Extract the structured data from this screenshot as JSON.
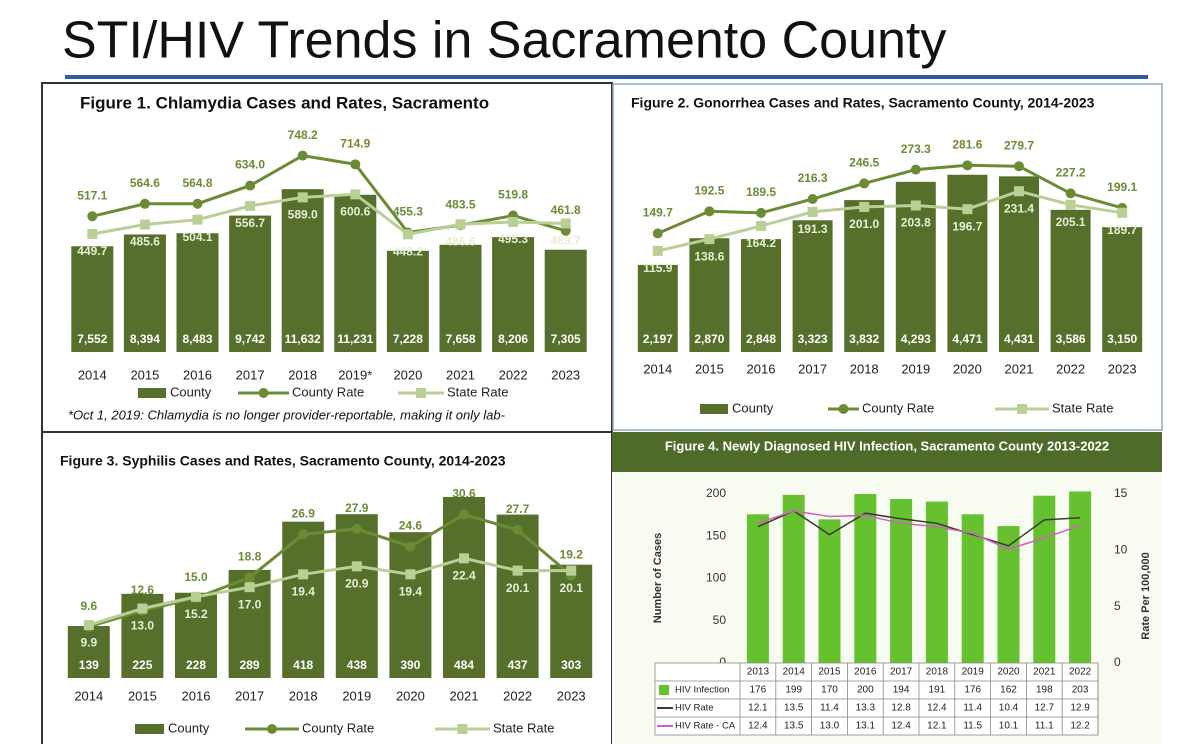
{
  "page_title": "STI/HIV Trends in Sacramento County",
  "chart_data": [
    {
      "type": "bar_line",
      "title": "Figure 1. Chlamydia Cases and Rates, Sacramento",
      "categories": [
        "2014",
        "2015",
        "2016",
        "2017",
        "2018",
        "2019*",
        "2020",
        "2021",
        "2022",
        "2023"
      ],
      "series": [
        {
          "name": "County",
          "type": "bar",
          "color": "#566f2c",
          "values": [
            7552,
            8394,
            8483,
            9742,
            11632,
            11231,
            7228,
            7658,
            8206,
            7305
          ],
          "value_labels": [
            "7,552",
            "8,394",
            "8,483",
            "9,742",
            "11,632",
            "11,231",
            "7,228",
            "7,658",
            "8,206",
            "7,305"
          ]
        },
        {
          "name": "County Rate",
          "type": "line",
          "axis": "y2",
          "marker": "circle",
          "color": "#6b8b35",
          "values": [
            517.1,
            564.6,
            564.8,
            634.0,
            748.2,
            714.9,
            455.3,
            483.5,
            519.8,
            461.8
          ],
          "value_labels": [
            "517.1",
            "564.6",
            "564.8",
            "634.0",
            "748.2",
            "714.9",
            "455.3",
            "483.5",
            "519.8",
            "461.8"
          ]
        },
        {
          "name": "State Rate",
          "type": "line",
          "axis": "y2",
          "marker": "square",
          "color": "#b9cf95",
          "values": [
            449.7,
            485.6,
            504.1,
            556.7,
            589.0,
            600.6,
            448.2,
            486.6,
            495.3,
            489.7
          ],
          "value_labels": [
            "449.7",
            "485.6",
            "504.1",
            "556.7",
            "589.0",
            "600.6",
            "448.2",
            "486.6",
            "495.3",
            "489.7"
          ]
        }
      ],
      "ylim": [
        0,
        15000
      ],
      "y2lim": [
        0,
        800
      ],
      "data_labels": true,
      "note": "*Oct 1, 2019: Chlamydia is no longer provider-reportable, making it only lab-"
    },
    {
      "type": "bar_line",
      "title": "Figure 2. Gonorrhea Cases and Rates, Sacramento County, 2014-2023",
      "categories": [
        "2014",
        "2015",
        "2016",
        "2017",
        "2018",
        "2019",
        "2020",
        "2021",
        "2022",
        "2023"
      ],
      "series": [
        {
          "name": "County",
          "type": "bar",
          "color": "#56702c",
          "values": [
            2197,
            2870,
            2848,
            3323,
            3832,
            4293,
            4471,
            4431,
            3586,
            3150
          ],
          "value_labels": [
            "2,197",
            "2,870",
            "2,848",
            "3,323",
            "3,832",
            "4,293",
            "4,471",
            "4,431",
            "3,586",
            "3,150"
          ]
        },
        {
          "name": "County Rate",
          "type": "line",
          "axis": "y2",
          "marker": "circle",
          "color": "#6b8b35",
          "values": [
            149.7,
            192.5,
            189.5,
            216.3,
            246.5,
            273.3,
            281.6,
            279.7,
            227.2,
            199.1
          ]
        },
        {
          "name": "State Rate",
          "type": "line",
          "axis": "y2",
          "marker": "square",
          "color": "#b9cf95",
          "values": [
            115.9,
            138.6,
            164.2,
            191.3,
            201.0,
            203.8,
            196.7,
            231.4,
            205.1,
            189.7
          ],
          "value_labels": [
            "115.9",
            "138.6",
            "164.2",
            "191.3",
            "201.0",
            "203.8",
            "196.7",
            "231.4",
            "205.1",
            "189.7"
          ]
        }
      ],
      "ylim": [
        0,
        5600
      ],
      "y2lim": [
        -80,
        350
      ],
      "data_labels": true
    },
    {
      "type": "bar_line",
      "title": "Figure 3. Syphilis Cases and Rates, Sacramento County, 2014-2023",
      "categories": [
        "2014",
        "2015",
        "2016",
        "2017",
        "2018",
        "2019",
        "2020",
        "2021",
        "2022",
        "2023"
      ],
      "series": [
        {
          "name": "County",
          "type": "bar",
          "color": "#56702c",
          "values": [
            139,
            225,
            228,
            289,
            418,
            438,
            390,
            484,
            437,
            303
          ]
        },
        {
          "name": "County Rate",
          "type": "line",
          "axis": "y2",
          "marker": "circle",
          "color": "#6b8b35",
          "values": [
            9.6,
            12.6,
            15.0,
            18.8,
            26.9,
            27.9,
            24.6,
            30.6,
            27.7,
            19.2
          ],
          "value_labels": [
            "9.6",
            "12.6",
            "15.0",
            "18.8",
            "26.9",
            "27.9",
            "24.6",
            "30.6",
            "27.7",
            "19.2"
          ]
        },
        {
          "name": "State Rate",
          "type": "line",
          "axis": "y2",
          "marker": "square",
          "color": "#b9cf95",
          "values": [
            9.9,
            13.0,
            15.2,
            17.0,
            19.4,
            20.9,
            19.4,
            22.4,
            20.1,
            20.1
          ],
          "value_labels": [
            "9.9",
            "13.0",
            "15.2",
            "17.0",
            "19.4",
            "20.9",
            "19.4",
            "22.4",
            "20.1",
            "20.1"
          ]
        }
      ],
      "ylim": [
        0,
        500
      ],
      "y2lim": [
        0,
        35
      ],
      "data_labels": true
    },
    {
      "type": "bar_line",
      "title": "Figure 4. Newly Diagnosed HIV Infection, Sacramento County 2013-2022",
      "categories": [
        "2013",
        "2014",
        "2015",
        "2016",
        "2017",
        "2018",
        "2019",
        "2020",
        "2021",
        "2022"
      ],
      "series": [
        {
          "name": "HIV Infection",
          "type": "bar",
          "color": "#66c12f",
          "values": [
            176,
            199,
            170,
            200,
            194,
            191,
            176,
            162,
            198,
            203
          ]
        },
        {
          "name": "HIV Rate",
          "type": "line",
          "axis": "y2",
          "color": "#3b3b2b",
          "values": [
            12.1,
            13.5,
            11.4,
            13.3,
            12.8,
            12.4,
            11.4,
            10.4,
            12.7,
            12.9
          ]
        },
        {
          "name": "HIV Rate - CA",
          "type": "line",
          "axis": "y2",
          "color": "#d060c8",
          "values": [
            12.4,
            13.5,
            13.0,
            13.1,
            12.4,
            12.1,
            11.5,
            10.1,
            11.1,
            12.2
          ],
          "value_labels": [
            "12.4",
            "13.5",
            "13.0",
            "13.1",
            "12.4",
            "12.1",
            "11.5",
            "10.1",
            "11.1",
            "12.2"
          ]
        }
      ],
      "ylabel": "Number of Cases",
      "y2label": "Rate Per 100,000",
      "ylim": [
        0,
        200
      ],
      "yticks": [
        0,
        50,
        100,
        150,
        200
      ],
      "y2lim": [
        0,
        15
      ],
      "y2ticks": [
        0,
        5,
        10,
        15
      ],
      "data_table": true
    }
  ]
}
